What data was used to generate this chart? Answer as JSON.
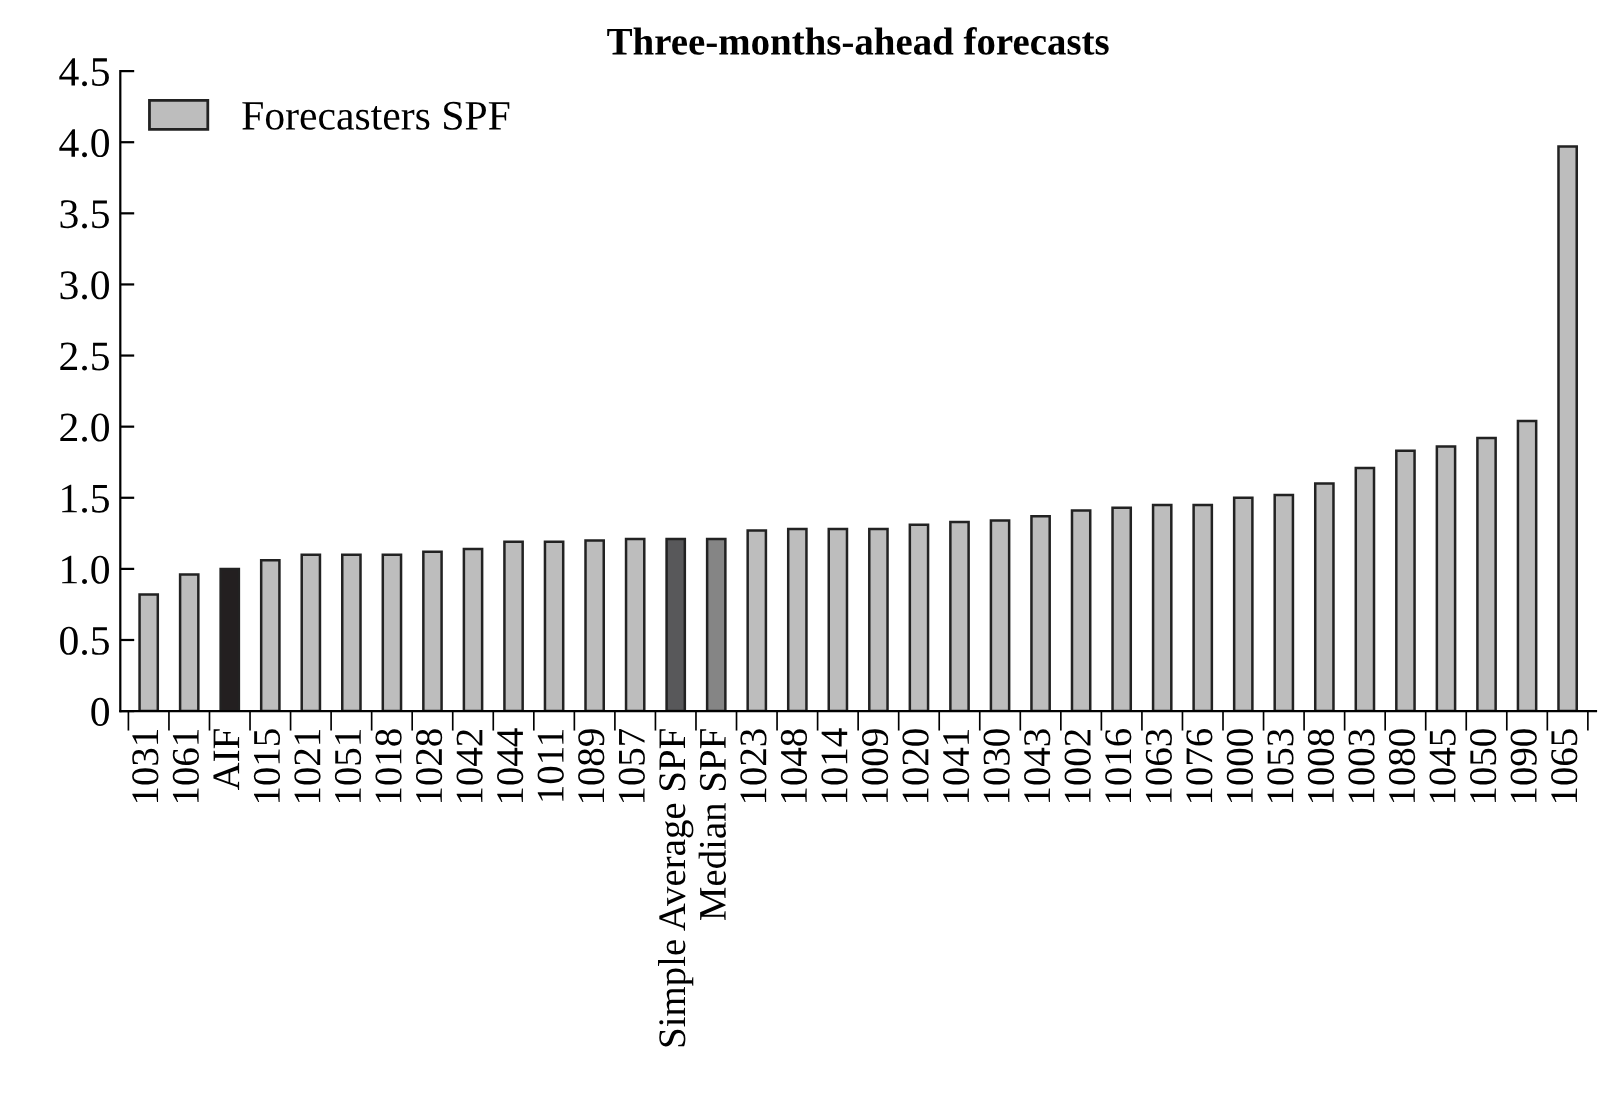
{
  "chart_data": {
    "type": "bar",
    "title": "Three-months-ahead forecasts",
    "categories": [
      "1031",
      "1061",
      "AIF",
      "1015",
      "1021",
      "1051",
      "1018",
      "1028",
      "1042",
      "1044",
      "1011",
      "1089",
      "1057",
      "Simple Average SPF",
      "Median SPF",
      "1023",
      "1048",
      "1014",
      "1009",
      "1020",
      "1041",
      "1030",
      "1043",
      "1002",
      "1016",
      "1063",
      "1076",
      "1000",
      "1053",
      "1008",
      "1003",
      "1080",
      "1045",
      "1050",
      "1090",
      "1065"
    ],
    "series": [
      {
        "name": "Forecasters SPF",
        "color": "#bdbdbd",
        "colors": [
          "#bdbdbd",
          "#bdbdbd",
          "#231f20",
          "#bdbdbd",
          "#bdbdbd",
          "#bdbdbd",
          "#bdbdbd",
          "#bdbdbd",
          "#bdbdbd",
          "#bdbdbd",
          "#bdbdbd",
          "#bdbdbd",
          "#bdbdbd",
          "#58585a",
          "#858585",
          "#bdbdbd",
          "#bdbdbd",
          "#bdbdbd",
          "#bdbdbd",
          "#bdbdbd",
          "#bdbdbd",
          "#bdbdbd",
          "#bdbdbd",
          "#bdbdbd",
          "#bdbdbd",
          "#bdbdbd",
          "#bdbdbd",
          "#bdbdbd",
          "#bdbdbd",
          "#bdbdbd",
          "#bdbdbd",
          "#bdbdbd",
          "#bdbdbd",
          "#bdbdbd",
          "#bdbdbd",
          "#bdbdbd"
        ],
        "values": [
          0.82,
          0.96,
          1.0,
          1.06,
          1.1,
          1.1,
          1.1,
          1.12,
          1.14,
          1.19,
          1.19,
          1.2,
          1.21,
          1.21,
          1.21,
          1.27,
          1.28,
          1.28,
          1.28,
          1.31,
          1.33,
          1.34,
          1.37,
          1.41,
          1.43,
          1.45,
          1.45,
          1.5,
          1.52,
          1.6,
          1.71,
          1.83,
          1.86,
          1.92,
          2.04,
          3.97
        ]
      }
    ],
    "ylim": [
      0,
      4.5
    ],
    "yticks": [
      0,
      {
        "value": 0.5,
        "label": "0.5"
      },
      {
        "value": 1.0,
        "label": "1.0"
      },
      {
        "value": 1.5,
        "label": "1.5"
      },
      {
        "value": 2.0,
        "label": "2.0"
      },
      {
        "value": 2.5,
        "label": "2.5"
      },
      {
        "value": 3.0,
        "label": "3.0"
      },
      {
        "value": 3.5,
        "label": "3.5"
      },
      {
        "value": 4.0,
        "label": "4.0"
      },
      {
        "value": 4.5,
        "label": "4.5"
      }
    ],
    "legend": "top left",
    "grid": false
  }
}
